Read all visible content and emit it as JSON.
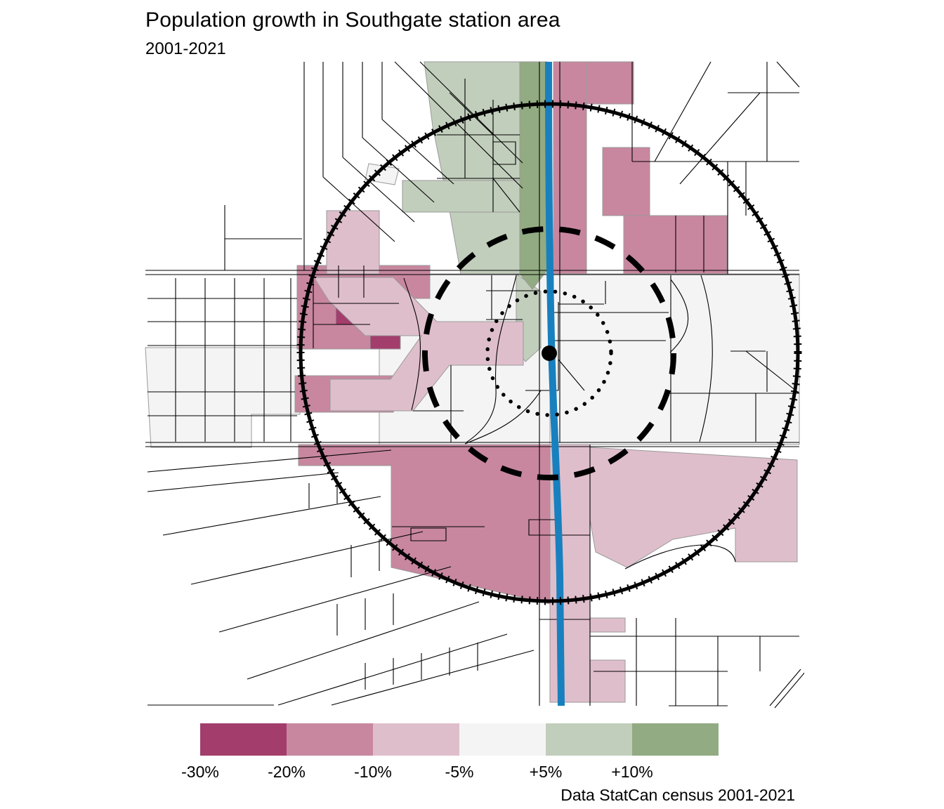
{
  "header": {
    "title": "Population growth in Southgate station area",
    "subtitle": "2001-2021"
  },
  "legend": {
    "bins": [
      {
        "label": "-30%",
        "color": "#A33E6C"
      },
      {
        "label": "-20%",
        "color": "#C8879F"
      },
      {
        "label": "-10%",
        "color": "#DFBECB"
      },
      {
        "label": "-5%",
        "color": "#F5F4F4"
      },
      {
        "label": "+5%",
        "color": "#C2CEBC"
      },
      {
        "label": "+10%",
        "color": "#92AB82"
      }
    ]
  },
  "caption": "Data StatCan census 2001-2021",
  "map": {
    "lrt_line_color": "#1880BE",
    "station_point_color": "#000000",
    "street_color": "#000000",
    "ring_color": "#000000"
  }
}
